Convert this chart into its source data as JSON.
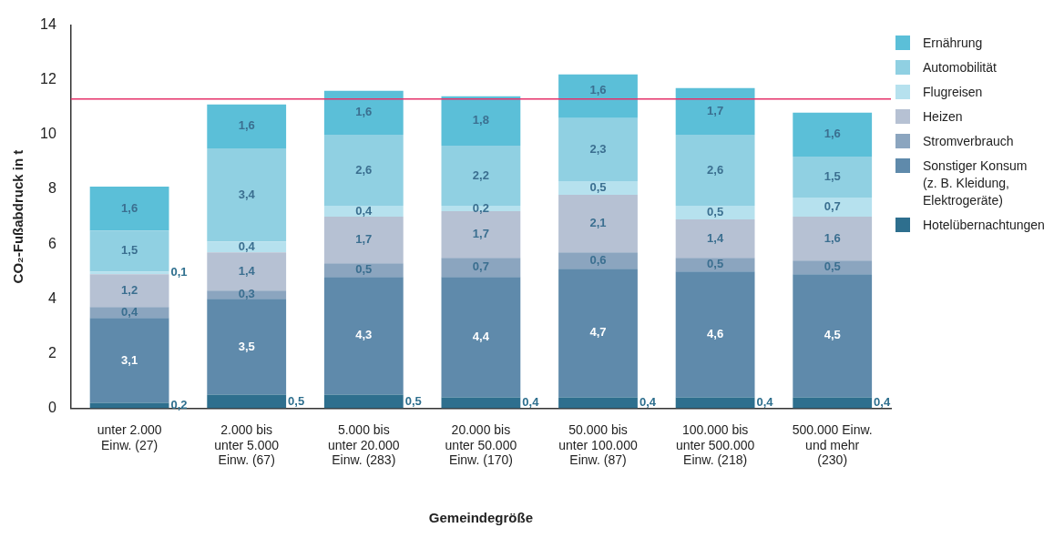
{
  "chart_data": {
    "type": "bar",
    "stacked": true,
    "ylabel": "CO₂-Fußabdruck in t",
    "xlabel": "Gemeindegröße",
    "categories": [
      "unter 2.000 Einw. (27)",
      "2.000 bis unter 5.000 Einw. (67)",
      "5.000 bis unter 20.000 Einw. (283)",
      "20.000 bis unter 50.000 Einw. (170)",
      "50.000 bis unter 100.000 Einw. (87)",
      "100.000 bis unter 500.000 Einw. (218)",
      "500.000 Einw. und mehr (230)"
    ],
    "ylim": [
      0,
      14
    ],
    "yticks": [
      0,
      2,
      4,
      6,
      8,
      10,
      12,
      14
    ],
    "grid": false,
    "legend": "right",
    "ref_lines": [
      {
        "axis": "y",
        "value": 11.3,
        "color": "#e5326a"
      }
    ],
    "series": [
      {
        "name": "Hotelübernachtungen",
        "color": "#2e6f8e",
        "values": [
          0.2,
          0.5,
          0.5,
          0.4,
          0.4,
          0.4,
          0.4
        ],
        "value_labels": [
          "0,2",
          "0,5",
          "0,5",
          "0,4",
          "0,4",
          "0,4",
          "0,4"
        ]
      },
      {
        "name": "Sonstiger Konsum (z. B. Kleidung, Elektrogeräte)",
        "color": "#5f8aab",
        "values": [
          3.1,
          3.5,
          4.3,
          4.4,
          4.7,
          4.6,
          4.5
        ],
        "value_labels": [
          "3,1",
          "3,5",
          "4,3",
          "4,4",
          "4,7",
          "4,6",
          "4,5"
        ]
      },
      {
        "name": "Stromverbrauch",
        "color": "#8ba5bf",
        "values": [
          0.4,
          0.3,
          0.5,
          0.7,
          0.6,
          0.5,
          0.5
        ],
        "value_labels": [
          "0,4",
          "0,3",
          "0,5",
          "0,7",
          "0,6",
          "0,5",
          "0,5"
        ]
      },
      {
        "name": "Heizen",
        "color": "#b6c1d3",
        "values": [
          1.2,
          1.4,
          1.7,
          1.7,
          2.1,
          1.4,
          1.6
        ],
        "value_labels": [
          "1,2",
          "1,4",
          "1,7",
          "1,7",
          "2,1",
          "1,4",
          "1,6"
        ]
      },
      {
        "name": "Flugreisen",
        "color": "#b6e1ee",
        "values": [
          0.1,
          0.4,
          0.4,
          0.2,
          0.5,
          0.5,
          0.7
        ],
        "value_labels": [
          "0,1",
          "0,4",
          "0,4",
          "0,2",
          "0,5",
          "0,5",
          "0,7"
        ]
      },
      {
        "name": "Automobilität",
        "color": "#90d0e2",
        "values": [
          1.5,
          3.4,
          2.6,
          2.2,
          2.3,
          2.6,
          1.5
        ],
        "value_labels": [
          "1,5",
          "3,4",
          "2,6",
          "2,2",
          "2,3",
          "2,6",
          "1,5"
        ]
      },
      {
        "name": "Ernährung",
        "color": "#5bbfd8",
        "values": [
          1.6,
          1.6,
          1.6,
          1.8,
          1.6,
          1.7,
          1.6
        ],
        "value_labels": [
          "1,6",
          "1,6",
          "1,6",
          "1,8",
          "1,6",
          "1,7",
          "1,6"
        ]
      }
    ]
  }
}
